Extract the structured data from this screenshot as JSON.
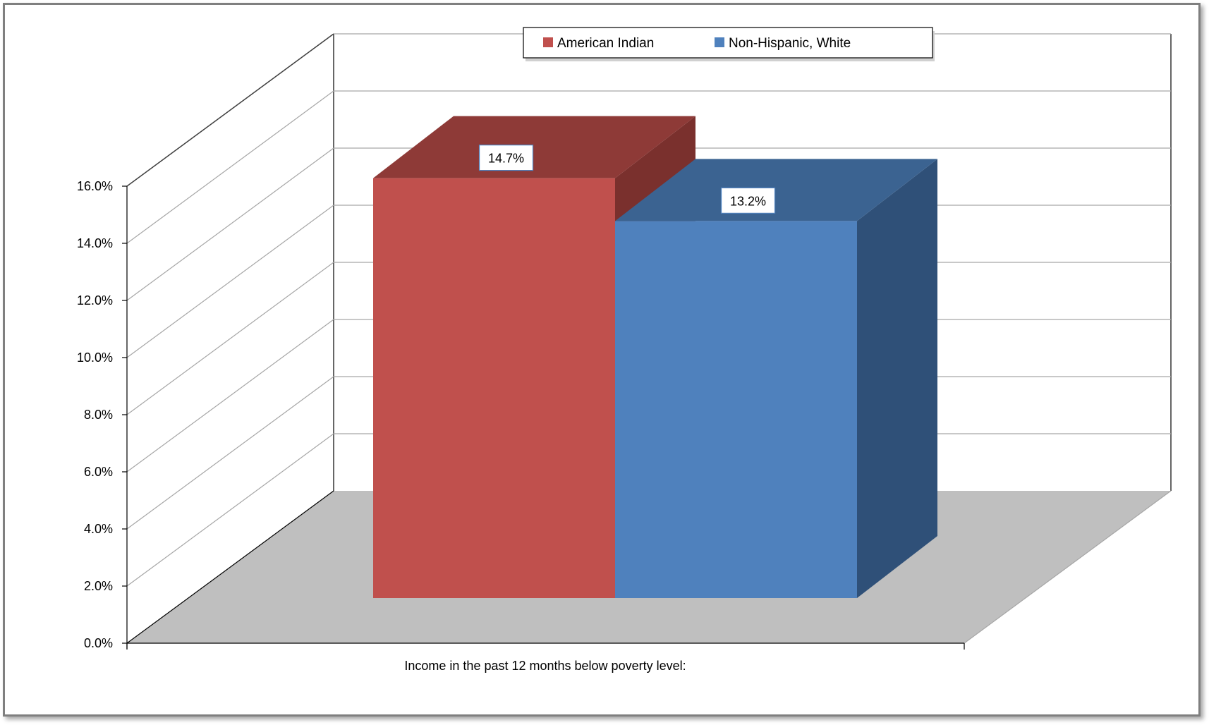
{
  "chart_data": {
    "type": "bar",
    "title": "",
    "xlabel": "",
    "ylabel": "",
    "categories": [
      "Income in the past 12 months below poverty level:"
    ],
    "series": [
      {
        "name": "American Indian",
        "values": [
          14.7
        ],
        "color": "#c0504d",
        "top_color": "#8e3a37",
        "side_color": "#7a302d"
      },
      {
        "name": "Non-Hispanic, White",
        "values": [
          13.2
        ],
        "color": "#4f81bd",
        "top_color": "#3b6391",
        "side_color": "#2f5078"
      }
    ],
    "data_labels": [
      "14.7%",
      "13.2%"
    ],
    "ylim": [
      0,
      16
    ],
    "y_ticks": [
      "0.0%",
      "2.0%",
      "4.0%",
      "6.0%",
      "8.0%",
      "10.0%",
      "12.0%",
      "14.0%",
      "16.0%"
    ],
    "legend_position": "top",
    "grid": true,
    "three_d": true,
    "floor_color": "#bfbfbf",
    "gridline_color": "#a6a6a6"
  }
}
